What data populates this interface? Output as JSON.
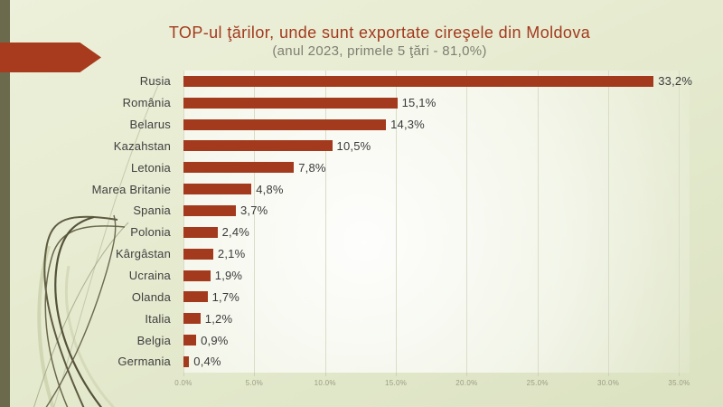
{
  "slide": {
    "title": "TOP-ul ţărilor, unde sunt exportate cireşele din Moldova",
    "subtitle": "(anul 2023, primele 5 ţări - 81,0%)"
  },
  "colors": {
    "bar": "#a33a1e",
    "arrow": "#a83b1d",
    "stripe": "#6b6a4d",
    "title_text": "#a23a1e",
    "subtitle_text": "#7f7f72",
    "label_text": "#3f3f3f",
    "axis_text": "#9b9d84",
    "gridline": "#d9ddc6",
    "background": "#e4e9cd"
  },
  "chart_data": {
    "type": "bar",
    "orientation": "horizontal",
    "title": "TOP-ul ţărilor, unde sunt exportate cireşele din Moldova (anul 2023, primele 5 ţări - 81,0%)",
    "categories": [
      "Rusia",
      "România",
      "Belarus",
      "Kazahstan",
      "Letonia",
      "Marea Britanie",
      "Spania",
      "Polonia",
      "Kârgâstan",
      "Ucraina",
      "Olanda",
      "Italia",
      "Belgia",
      "Germania"
    ],
    "values": [
      33.2,
      15.1,
      14.3,
      10.5,
      7.8,
      4.8,
      3.7,
      2.4,
      2.1,
      1.9,
      1.7,
      1.2,
      0.9,
      0.4
    ],
    "value_labels": [
      "33,2%",
      "15,1%",
      "14,3%",
      "10,5%",
      "7,8%",
      "4,8%",
      "3,7%",
      "2,4%",
      "2,1%",
      "1,9%",
      "1,7%",
      "1,2%",
      "0,9%",
      "0,4%"
    ],
    "x_ticks": [
      0,
      5,
      10,
      15,
      20,
      25,
      30,
      35
    ],
    "x_tick_labels": [
      "0.0%",
      "5.0%",
      "10.0%",
      "15.0%",
      "20.0%",
      "25.0%",
      "30.0%",
      "35.0%"
    ],
    "xlim": [
      0,
      35.7
    ],
    "grid": true,
    "legend": false,
    "xlabel": "",
    "ylabel": ""
  }
}
